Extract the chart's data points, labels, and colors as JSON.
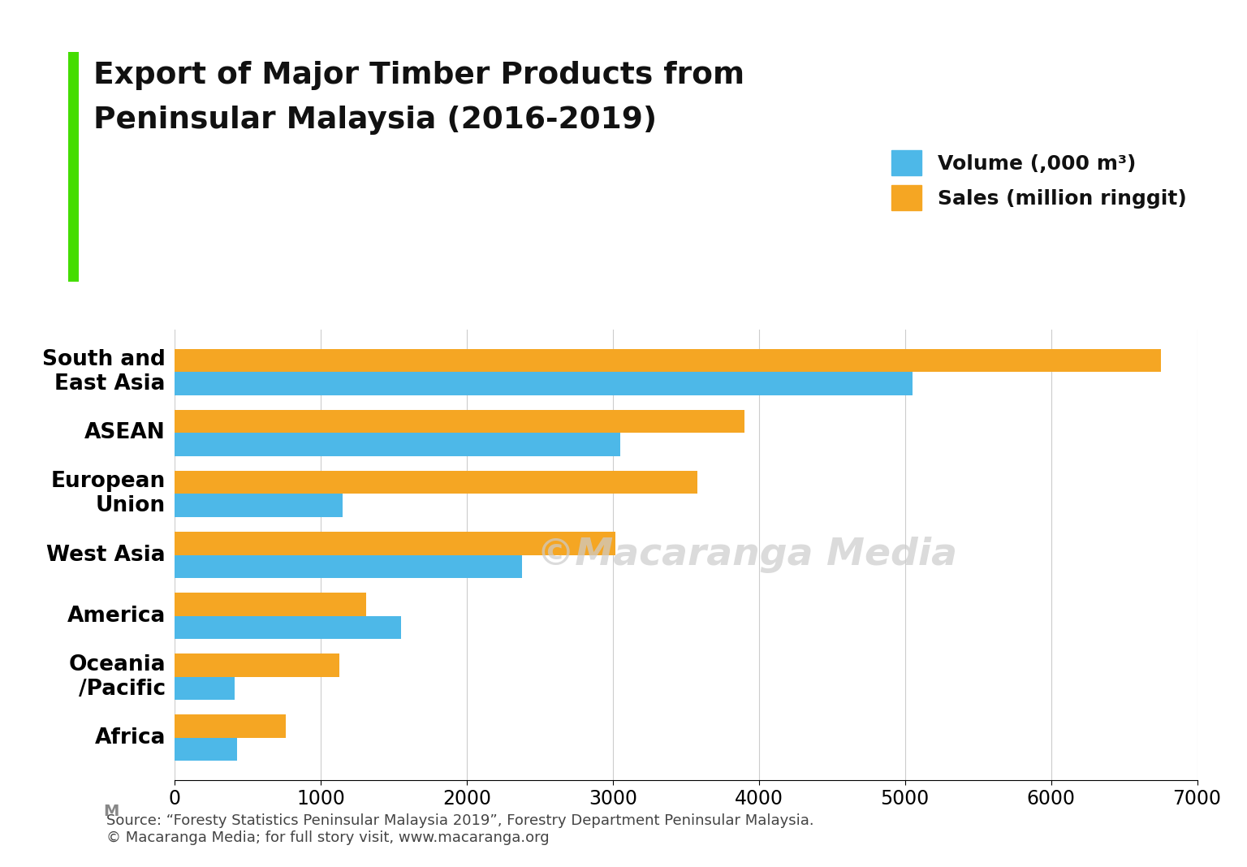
{
  "title_line1": "Export of Major Timber Products from",
  "title_line2": "Peninsular Malaysia (2016-2019)",
  "categories": [
    "South and\nEast Asia",
    "ASEAN",
    "European\nUnion",
    "West Asia",
    "America",
    "Oceania\n/Pacific",
    "Africa"
  ],
  "volume": [
    5050,
    3050,
    1150,
    2380,
    1550,
    410,
    430
  ],
  "sales": [
    6750,
    3900,
    3580,
    3020,
    1310,
    1130,
    760
  ],
  "volume_color": "#4db8e8",
  "sales_color": "#f5a623",
  "xlim": [
    0,
    7000
  ],
  "xticks": [
    0,
    1000,
    2000,
    3000,
    4000,
    5000,
    6000,
    7000
  ],
  "legend_volume": "Volume (,000 m³)",
  "legend_sales": "Sales (million ringgit)",
  "background_color": "#ffffff",
  "bar_height": 0.38,
  "green_bar_color": "#44dd00",
  "source_text": "Source: “Foresty Statistics Peninsular Malaysia 2019”, Forestry Department Peninsular Malaysia.\n© Macaranga Media; for full story visit, www.macaranga.org",
  "watermark": "©Macaranga Media",
  "title_fontsize": 27,
  "label_fontsize": 19,
  "tick_fontsize": 17,
  "legend_fontsize": 18,
  "source_fontsize": 13
}
